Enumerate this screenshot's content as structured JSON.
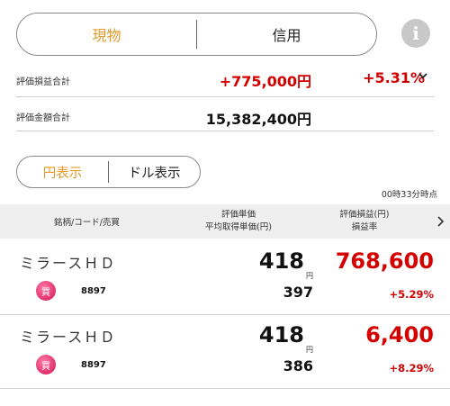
{
  "tabs": {
    "spot": "現物",
    "margin": "信用"
  },
  "info_icon": "info-icon",
  "summary": {
    "pl_label": "評価損益合計",
    "pl_amount": "+775,000円",
    "pl_rate": "+5.31%",
    "total_label": "評価金額合計",
    "total_amount": "15,382,400円"
  },
  "currency_toggle": {
    "yen": "円表示",
    "dollar": "ドル表示"
  },
  "as_of": "00時33分時点",
  "table_header": {
    "col1": "銘柄/コード/売買",
    "col2_line1": "評価単価",
    "col2_line2": "平均取得単価(円)",
    "col3_line1": "評価損益(円)",
    "col3_line2": "損益率"
  },
  "holdings": [
    {
      "name": "ミラースＨＤ",
      "side": "買",
      "code": "8897",
      "price": "418",
      "yen": "円",
      "avg_cost": "397",
      "pl": "768,600",
      "pl_rate": "+5.29%"
    },
    {
      "name": "ミラースＨＤ",
      "side": "買",
      "code": "8897",
      "price": "418",
      "yen": "円",
      "avg_cost": "386",
      "pl": "6,400",
      "pl_rate": "+8.29%"
    }
  ],
  "colors": {
    "accent": "#e39a2a",
    "profit": "#d40000",
    "badge": "#e0306a"
  }
}
